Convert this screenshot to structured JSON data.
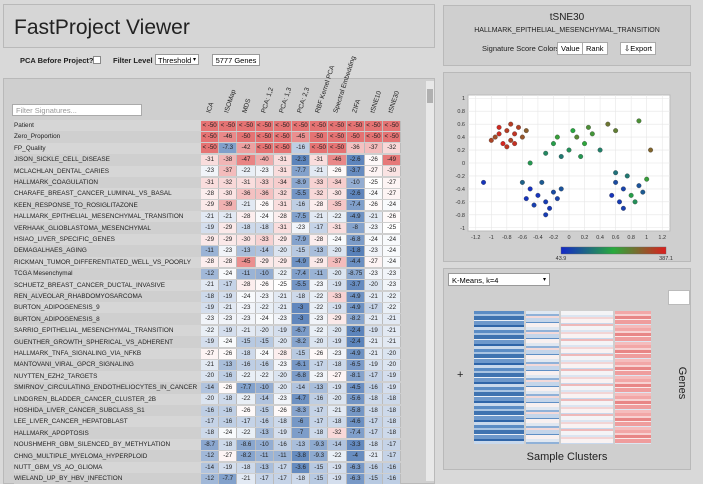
{
  "header": {
    "title": "FastProject Viewer"
  },
  "controls": {
    "pca_label": "PCA Before Project?",
    "filter_label": "Filter Level",
    "filter_value": "Threshold",
    "genes": "5777 Genes"
  },
  "table": {
    "filter_placeholder": "Filter Signatures...",
    "columns": [
      "ICA",
      "ISOMap",
      "MDS",
      "PCA: 1,2",
      "PCA: 1,3",
      "PCA: 2,3",
      "RBF Kernel PCA",
      "Spectral Embedding",
      "ZIFA",
      "tSNE10",
      "tSNE30"
    ],
    "rows": [
      {
        "name": "Patient",
        "cells": [
          {
            "value": -50,
            "label": "< -50"
          },
          {
            "value": -50,
            "label": "< -50"
          },
          {
            "value": -50,
            "label": "< -50"
          },
          {
            "value": -50,
            "label": "< -50"
          },
          {
            "value": -50,
            "label": "< -50"
          },
          {
            "value": -50,
            "label": "< -50"
          },
          {
            "value": -50,
            "label": "< -50"
          },
          {
            "value": -50,
            "label": "< -50"
          },
          {
            "value": -50,
            "label": "< -50"
          },
          {
            "value": -50,
            "label": "< -50"
          },
          {
            "value": -50,
            "label": "< -50"
          }
        ]
      },
      {
        "name": "Zero_Proportion",
        "cells": [
          {
            "value": -50,
            "label": "< -50"
          },
          -46,
          -50,
          {
            "value": -50,
            "label": "< -50"
          },
          {
            "value": -50,
            "label": "< -50"
          },
          -45,
          -50,
          {
            "value": -50,
            "label": "< -50"
          },
          -50,
          {
            "value": -50,
            "label": "< -50"
          },
          {
            "value": -50,
            "label": "< -50"
          }
        ]
      },
      {
        "name": "FP_Quality",
        "cells": [
          {
            "value": -50,
            "label": "< -50"
          },
          -7.3,
          -42,
          {
            "value": -50,
            "label": "< -50"
          },
          {
            "value": -50,
            "label": "< -50"
          },
          -16,
          {
            "value": -50,
            "label": "< -50"
          },
          {
            "value": -50,
            "label": "< -50"
          },
          -36,
          -37,
          -32
        ]
      },
      {
        "name": "JISON_SICKLE_CELL_DISEASE",
        "cells": [
          -31,
          -38,
          -47,
          -40,
          -31,
          -2.3,
          -31,
          -46,
          -2.6,
          -26,
          -49
        ]
      },
      {
        "name": "MCLACHLAN_DENTAL_CARIES",
        "cells": [
          -23,
          -37,
          -22,
          -23,
          -31,
          -7.7,
          -21,
          -26,
          -3.7,
          -27,
          -30
        ]
      },
      {
        "name": "HALLMARK_COAGULATION",
        "cells": [
          -31,
          -32,
          -31,
          -33,
          -34,
          -8.9,
          -33,
          -34,
          -10,
          -25,
          -27
        ]
      },
      {
        "name": "CHARAFE_BREAST_CANCER_LUMINAL_VS_BASAL",
        "cells": [
          -28,
          -30,
          -36,
          -36,
          -32,
          -5.5,
          -32,
          -30,
          -2.6,
          -24,
          -27
        ]
      },
      {
        "name": "KEEN_RESPONSE_TO_ROSIGLITAZONE",
        "cells": [
          -29,
          -39,
          -21,
          -26,
          -31,
          -16,
          -28,
          -35,
          -7.4,
          -26,
          -24
        ]
      },
      {
        "name": "HALLMARK_EPITHELIAL_MESENCHYMAL_TRANSITION",
        "cells": [
          -21,
          -21,
          -28,
          -24,
          -28,
          -7.5,
          -21,
          -22,
          -4.9,
          -21,
          -26
        ]
      },
      {
        "name": "VERHAAK_GLIOBLASTOMA_MESENCHYMAL",
        "cells": [
          -19,
          -29,
          -18,
          -18,
          -31,
          -23,
          -17,
          -31,
          -8.0,
          -23,
          -25
        ]
      },
      {
        "name": "HSIAO_LIVER_SPECIFIC_GENES",
        "cells": [
          -29,
          -29,
          -30,
          -33,
          -29,
          -7.9,
          -28,
          -24,
          -6.8,
          -24,
          -24
        ]
      },
      {
        "name": "DEMAGALHAES_AGING",
        "cells": [
          -11,
          -23,
          -13,
          -14,
          -20,
          -15,
          -13,
          -20,
          -1.8,
          -23,
          -24
        ]
      },
      {
        "name": "RICKMAN_TUMOR_DIFFERENTIATED_WELL_VS_POORLY",
        "cells": [
          -28,
          -28,
          -45,
          -29,
          -29,
          -4.9,
          -29,
          -37,
          -4.4,
          -27,
          -24
        ]
      },
      {
        "name": "TCGA Mesenchymal",
        "cells": [
          -12,
          -24,
          -11,
          -10,
          -22,
          -7.4,
          -11,
          -20,
          -8.75,
          -23,
          -23
        ]
      },
      {
        "name": "SCHUETZ_BREAST_CANCER_DUCTAL_INVASIVE",
        "cells": [
          -21,
          -17,
          -28,
          -26,
          -25,
          -5.5,
          -23,
          -19,
          -3.7,
          -20,
          -23
        ]
      },
      {
        "name": "REN_ALVEOLAR_RHABDOMYOSARCOMA",
        "cells": [
          -18,
          -19,
          -24,
          -23,
          -21,
          -18,
          -22,
          -33,
          -4.9,
          -21,
          -22
        ]
      },
      {
        "name": "BURTON_ADIPOGENESIS_9",
        "cells": [
          -19,
          -21,
          -23,
          -22,
          -21,
          -3.0,
          -22,
          -19,
          -4.9,
          -17,
          -22
        ]
      },
      {
        "name": "BURTON_ADIPOGENESIS_8",
        "cells": [
          -23,
          -23,
          -23,
          -24,
          -23,
          -3.0,
          -23,
          -29,
          -8.2,
          -21,
          -21
        ]
      },
      {
        "name": "SARRIO_EPITHELIAL_MESENCHYMAL_TRANSITION",
        "cells": [
          -22,
          -19,
          -21,
          -20,
          -19,
          -6.7,
          -22,
          -20,
          -2.4,
          -19,
          -21
        ]
      },
      {
        "name": "GUENTHER_GROWTH_SPHERICAL_VS_ADHERENT",
        "cells": [
          -19,
          -24,
          -15,
          -15,
          -20,
          -8.2,
          -20,
          -19,
          -2.4,
          -21,
          -21
        ]
      },
      {
        "name": "HALLMARK_TNFA_SIGNALING_VIA_NFKB",
        "cells": [
          -27,
          -26,
          -18,
          -24,
          -28,
          -15,
          -26,
          -23,
          -4.9,
          -21,
          -20
        ]
      },
      {
        "name": "MANTOVANI_VIRAL_GPCR_SIGNALING",
        "cells": [
          -21,
          -13,
          -16,
          -16,
          -23,
          -6.1,
          -17,
          -18,
          -6.5,
          -19,
          -20
        ]
      },
      {
        "name": "NUYTTEN_EZH2_TARGETS",
        "cells": [
          -20,
          -16,
          -22,
          -22,
          -20,
          -6.8,
          -23,
          -27,
          -8.1,
          -17,
          -19
        ]
      },
      {
        "name": "SMIRNOV_CIRCULATING_ENDOTHELIOCYTES_IN_CANCER",
        "cells": [
          -14,
          -26,
          -7.7,
          -10,
          -20,
          -14,
          -13,
          -19,
          -4.5,
          -16,
          -19
        ]
      },
      {
        "name": "LINDGREN_BLADDER_CANCER_CLUSTER_2B",
        "cells": [
          -20,
          -18,
          -22,
          -14,
          -23,
          -4.7,
          -16,
          -20,
          -5.6,
          -18,
          -18
        ]
      },
      {
        "name": "HOSHIDA_LIVER_CANCER_SUBCLASS_S1",
        "cells": [
          -16,
          -16,
          -26,
          -15,
          -26,
          -8.3,
          -17,
          -21,
          -5.8,
          -18,
          -18
        ]
      },
      {
        "name": "LEE_LIVER_CANCER_HEPATOBLAST",
        "cells": [
          -17,
          -16,
          -17,
          -16,
          -18,
          -6.0,
          -17,
          -18,
          -4.6,
          -17,
          -18
        ]
      },
      {
        "name": "HALLMARK_APOPTOSIS",
        "cells": [
          -18,
          -24,
          -22,
          -13,
          -19,
          -7.0,
          -18,
          -32,
          -7.4,
          -17,
          -18
        ]
      },
      {
        "name": "NOUSHMEHR_GBM_SILENCED_BY_METHYLATION",
        "cells": [
          -8.7,
          -18,
          -8.6,
          -10,
          -16,
          -13,
          -9.3,
          -14,
          -3.3,
          -18,
          -17
        ]
      },
      {
        "name": "CHNG_MULTIPLE_MYELOMA_HYPERPLOID",
        "cells": [
          -12,
          -27,
          -8.2,
          -11,
          -11,
          -3.8,
          -9.3,
          -22,
          -4.0,
          -21,
          -17
        ]
      },
      {
        "name": "NUTT_GBM_VS_AO_GLIOMA",
        "cells": [
          -14,
          -19,
          -18,
          -13,
          -17,
          -3.6,
          -15,
          -19,
          -6.3,
          -16,
          -16
        ]
      },
      {
        "name": "WIELAND_UP_BY_HBV_INFECTION",
        "cells": [
          -12,
          -7.7,
          -21,
          -17,
          -17,
          -18,
          -15,
          -19,
          -6.3,
          -15,
          -16
        ]
      }
    ]
  },
  "projection": {
    "title": "tSNE30",
    "signature": "HALLMARK_EPITHELIAL_MESENCHYMAL_TRANSITION",
    "colors_label": "Signature Score Colors:",
    "buttons": [
      "Value",
      "Rank"
    ],
    "export": "Export"
  },
  "chart_data": {
    "type": "scatter",
    "x": [
      -0.9,
      -0.8,
      -0.75,
      -0.85,
      -0.7,
      -0.95,
      -0.65,
      -0.8,
      -0.6,
      -0.9,
      -0.7,
      -1.0,
      -0.55,
      -0.75,
      -0.2,
      0,
      0.1,
      -0.1,
      0.2,
      0.3,
      -0.3,
      0.05,
      0.15,
      -0.15,
      0.4,
      0.25,
      0.5,
      0.6,
      -0.4,
      -0.3,
      -0.2,
      -0.5,
      -0.35,
      -0.25,
      -0.15,
      -0.45,
      -0.55,
      -0.1,
      -0.3,
      -0.6,
      0.6,
      0.7,
      0.8,
      0.65,
      0.75,
      0.9,
      0.55,
      0.85,
      0.7,
      0.95,
      1.0,
      0.6,
      -1.1,
      1.05,
      0.9,
      -0.5
    ],
    "y": [
      0.45,
      0.5,
      0.35,
      0.3,
      0.45,
      0.4,
      0.55,
      0.25,
      0.4,
      0.55,
      0.3,
      0.35,
      0.5,
      0.6,
      0.3,
      0.2,
      0.4,
      0.1,
      0.3,
      0.45,
      0.15,
      0.5,
      0.1,
      0.4,
      0.2,
      0.55,
      0.6,
      0.5,
      -0.5,
      -0.6,
      -0.45,
      -0.4,
      -0.3,
      -0.7,
      -0.55,
      -0.65,
      -0.55,
      -0.4,
      -0.8,
      -0.3,
      -0.3,
      -0.4,
      -0.5,
      -0.6,
      -0.2,
      -0.35,
      -0.5,
      -0.6,
      -0.7,
      -0.45,
      -0.25,
      -0.15,
      -0.3,
      0.2,
      0.65,
      0.0
    ],
    "values": [
      370,
      350,
      340,
      380,
      360,
      330,
      345,
      355,
      320,
      375,
      365,
      340,
      310,
      350,
      200,
      180,
      260,
      150,
      220,
      240,
      170,
      210,
      190,
      230,
      160,
      250,
      280,
      270,
      60,
      70,
      90,
      55,
      110,
      65,
      80,
      75,
      60,
      100,
      70,
      120,
      90,
      80,
      200,
      70,
      150,
      100,
      60,
      180,
      75,
      110,
      230,
      140,
      60,
      300,
      250,
      190
    ],
    "xlim": [
      -1.3,
      1.3
    ],
    "ylim": [
      -1.05,
      1.05
    ],
    "xticks": [
      -1.2,
      -1,
      -0.8,
      -0.6,
      -0.4,
      -0.2,
      0,
      0.2,
      0.4,
      0.6,
      0.8,
      1,
      1.2
    ],
    "yticks": [
      -1,
      -0.8,
      -0.6,
      -0.4,
      -0.2,
      0,
      0.2,
      0.4,
      0.6,
      0.8,
      1
    ],
    "grid": true,
    "colorbar": [
      43.9,
      387.1
    ]
  },
  "clusters": {
    "method": "K-Means, k=4",
    "plus": "+",
    "y_label": "Genes",
    "x_label": "Sample Clusters"
  }
}
